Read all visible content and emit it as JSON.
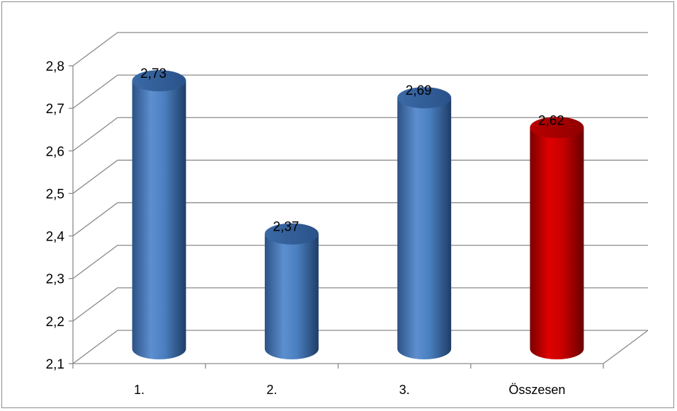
{
  "chart_data": {
    "type": "bar",
    "style": "3d-cylinder",
    "categories": [
      "1.",
      "2.",
      "3.",
      "Összesen"
    ],
    "values": [
      2.73,
      2.37,
      2.69,
      2.62
    ],
    "value_labels": [
      "2,73",
      "2,37",
      "2,69",
      "2,62"
    ],
    "ylim": [
      2.1,
      2.8
    ],
    "yticks": [
      "2,1",
      "2,2",
      "2,3",
      "2,4",
      "2,5",
      "2,6",
      "2,7",
      "2,8"
    ],
    "grid": true,
    "legend": "none",
    "colors": {
      "series": "#4f81bd",
      "highlight": "#c00000",
      "gridline": "#8a8a8a"
    },
    "highlight_category": "Összesen"
  }
}
